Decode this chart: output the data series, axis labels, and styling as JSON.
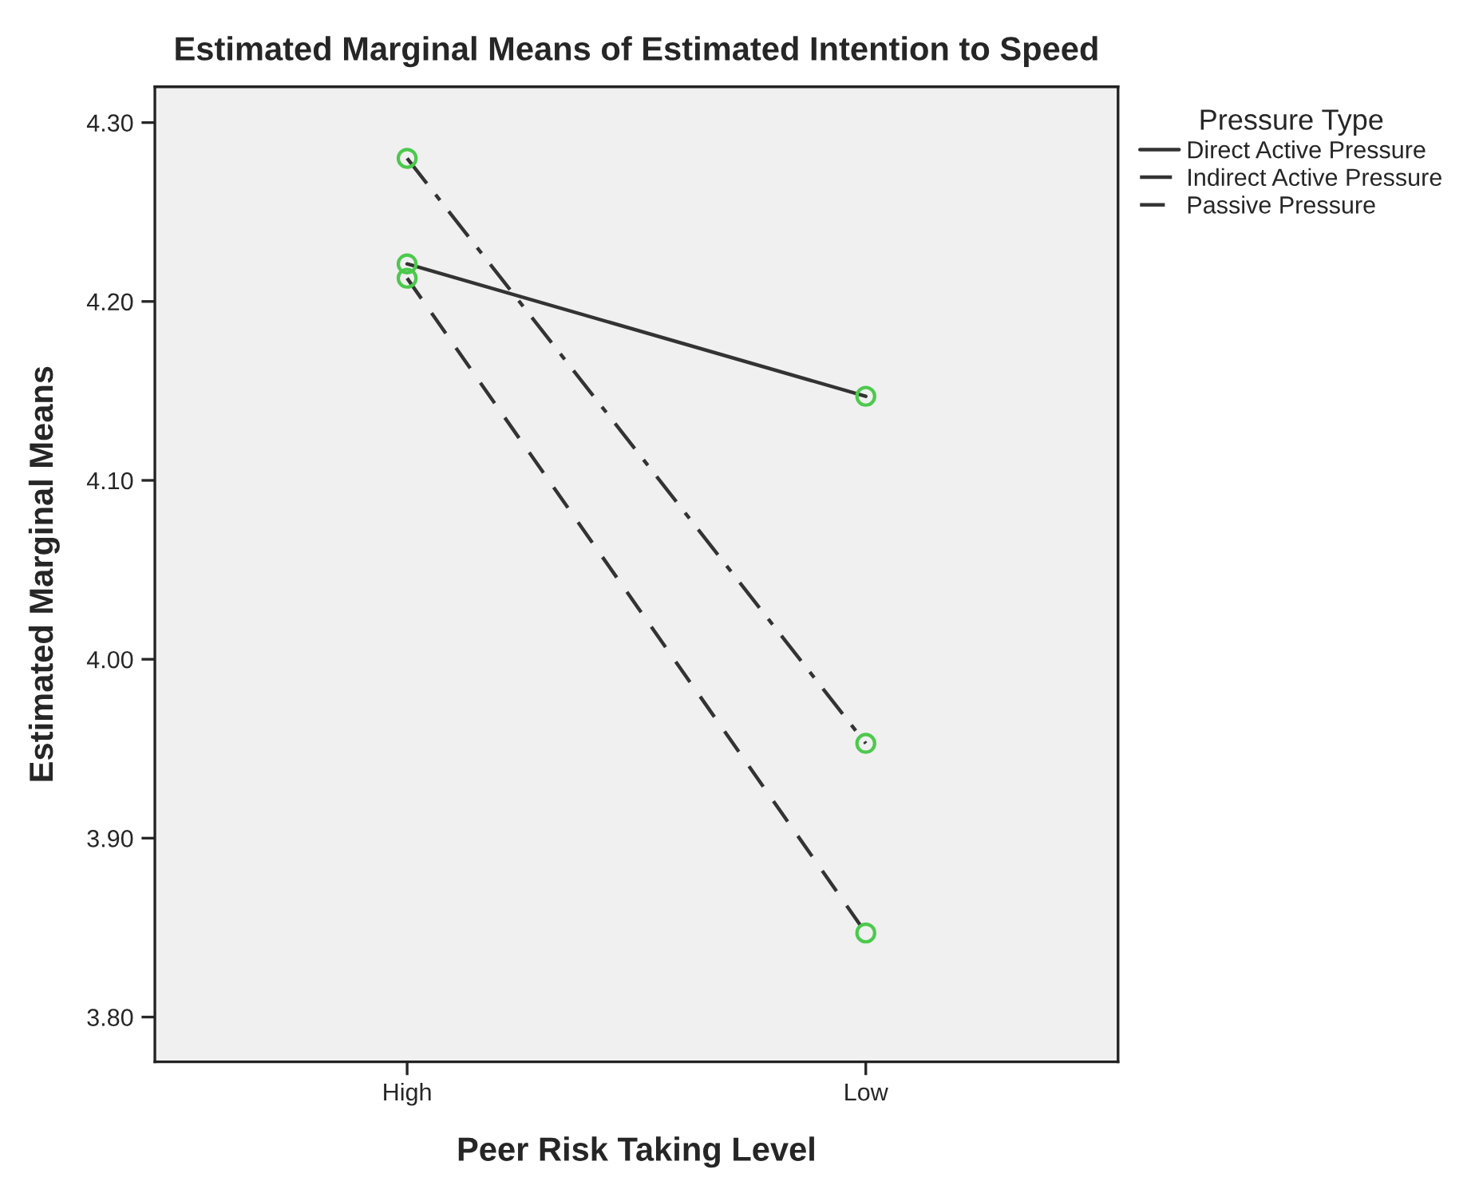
{
  "chart_data": {
    "type": "line",
    "title": "Estimated Marginal Means of Estimated Intention to Speed",
    "xlabel": "Peer Risk Taking Level",
    "ylabel": "Estimated Marginal Means",
    "legend_title": "Pressure Type",
    "categories": [
      "High",
      "Low"
    ],
    "series": [
      {
        "name": "Direct Active Pressure",
        "color": "#333333",
        "line_style": "solid",
        "values": [
          4.221,
          4.147
        ]
      },
      {
        "name": "Indirect Active Pressure",
        "color": "#333333",
        "line_style": "dashdot",
        "values": [
          4.28,
          3.953
        ]
      },
      {
        "name": "Passive Pressure",
        "color": "#333333",
        "line_style": "dashed",
        "values": [
          4.213,
          3.847
        ]
      }
    ],
    "ylim": [
      3.775,
      4.32
    ],
    "yticks": [
      {
        "value": 3.8,
        "label": "3.80"
      },
      {
        "value": 3.9,
        "label": "3.90"
      },
      {
        "value": 4.0,
        "label": "4.00"
      },
      {
        "value": 4.1,
        "label": "4.10"
      },
      {
        "value": 4.2,
        "label": "4.20"
      },
      {
        "value": 4.3,
        "label": "4.30"
      }
    ],
    "marker": "circle",
    "grid": false,
    "legend": "top right"
  }
}
